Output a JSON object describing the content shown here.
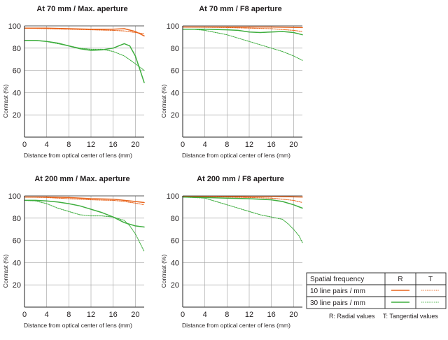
{
  "colors": {
    "orange": "#e8641c",
    "green": "#3fae3f",
    "grid": "#9e9e9e",
    "frame": "#222222"
  },
  "legend": {
    "header_label": "Spatial frequency",
    "col_r": "R",
    "col_t": "T",
    "row1_label": "10 line pairs / mm",
    "row2_label": "30 line pairs / mm",
    "note_r": "R: Radial values",
    "note_t": "T: Tangential values"
  },
  "chart_data": [
    {
      "type": "line",
      "title": "At 70 mm / Max. aperture",
      "xlabel": "Distance from optical center of lens (mm)",
      "ylabel": "Contrast (%)",
      "xlim": [
        0,
        21.6
      ],
      "ylim": [
        0,
        100
      ],
      "xticks": [
        0,
        4,
        8,
        12,
        16,
        20
      ],
      "yticks": [
        20,
        40,
        60,
        80,
        100
      ],
      "grid": true,
      "series": [
        {
          "name": "10 line pairs / mm R",
          "color": "orange",
          "style": "solid",
          "x": [
            0,
            4,
            8,
            12,
            16,
            18,
            20,
            21.6
          ],
          "y": [
            98,
            98,
            97.5,
            97,
            97,
            97.5,
            95,
            91
          ]
        },
        {
          "name": "10 line pairs / mm T",
          "color": "orange",
          "style": "dotted",
          "x": [
            0,
            4,
            8,
            12,
            16,
            18,
            20,
            21.6
          ],
          "y": [
            98,
            97.5,
            97,
            96.5,
            96,
            95.5,
            94,
            93
          ]
        },
        {
          "name": "30 line pairs / mm R",
          "color": "green",
          "style": "solid",
          "x": [
            0,
            2,
            4,
            6,
            8,
            10,
            12,
            14,
            16,
            17,
            18,
            19,
            20,
            21,
            21.6
          ],
          "y": [
            87,
            87,
            86,
            84.5,
            82,
            79.5,
            78,
            78.5,
            80,
            82,
            84,
            82,
            73,
            58,
            49
          ]
        },
        {
          "name": "30 line pairs / mm T",
          "color": "green",
          "style": "dotted",
          "x": [
            0,
            2,
            4,
            6,
            8,
            10,
            12,
            14,
            16,
            18,
            20,
            21.6
          ],
          "y": [
            87,
            87,
            86,
            84,
            82,
            80,
            79,
            79,
            77,
            73,
            66,
            60
          ]
        }
      ]
    },
    {
      "type": "line",
      "title": "At 70 mm / F8 aperture",
      "xlabel": "Distance from optical center of lens (mm)",
      "ylabel": "Contrast (%)",
      "xlim": [
        0,
        21.6
      ],
      "ylim": [
        0,
        100
      ],
      "xticks": [
        0,
        4,
        8,
        12,
        16,
        20
      ],
      "yticks": [
        20,
        40,
        60,
        80,
        100
      ],
      "grid": true,
      "series": [
        {
          "name": "10 line pairs / mm R",
          "color": "orange",
          "style": "solid",
          "x": [
            0,
            8,
            16,
            21.6
          ],
          "y": [
            99,
            99,
            99,
            98.5
          ]
        },
        {
          "name": "10 line pairs / mm T",
          "color": "orange",
          "style": "dotted",
          "x": [
            0,
            8,
            16,
            20,
            21.6
          ],
          "y": [
            99,
            98.5,
            97.5,
            96,
            95
          ]
        },
        {
          "name": "30 line pairs / mm R",
          "color": "green",
          "style": "solid",
          "x": [
            0,
            4,
            8,
            10,
            12,
            14,
            16,
            18,
            20,
            21.6
          ],
          "y": [
            97,
            97,
            96.5,
            96,
            94.5,
            94,
            94.5,
            95,
            94,
            92
          ]
        },
        {
          "name": "30 line pairs / mm T",
          "color": "green",
          "style": "dotted",
          "x": [
            0,
            2,
            4,
            6,
            8,
            10,
            12,
            14,
            16,
            18,
            20,
            21.6
          ],
          "y": [
            97,
            97,
            96,
            94,
            92,
            89,
            86,
            83,
            80,
            77,
            73,
            69
          ]
        }
      ]
    },
    {
      "type": "line",
      "title": "At 200 mm / Max. aperture",
      "xlabel": "Distance from optical center of lens (mm)",
      "ylabel": "Contrast (%)",
      "xlim": [
        0,
        21.6
      ],
      "ylim": [
        0,
        100
      ],
      "xticks": [
        0,
        4,
        8,
        12,
        16,
        20
      ],
      "yticks": [
        20,
        40,
        60,
        80,
        100
      ],
      "grid": true,
      "series": [
        {
          "name": "10 line pairs / mm R",
          "color": "orange",
          "style": "solid",
          "x": [
            0,
            4,
            8,
            12,
            16,
            18,
            20,
            21.6
          ],
          "y": [
            99,
            99,
            98.5,
            97.5,
            97,
            96,
            95,
            94
          ]
        },
        {
          "name": "10 line pairs / mm T",
          "color": "orange",
          "style": "dotted",
          "x": [
            0,
            4,
            8,
            12,
            16,
            18,
            20,
            21.6
          ],
          "y": [
            99,
            98.5,
            97.5,
            96.5,
            96,
            95,
            93.5,
            92
          ]
        },
        {
          "name": "30 line pairs / mm R",
          "color": "green",
          "style": "solid",
          "x": [
            0,
            2,
            4,
            6,
            8,
            10,
            12,
            14,
            16,
            18,
            20,
            21.6
          ],
          "y": [
            96,
            96,
            95.5,
            94.5,
            93,
            91,
            88,
            85,
            81,
            76,
            73,
            72
          ]
        },
        {
          "name": "30 line pairs / mm T",
          "color": "green",
          "style": "dotted",
          "x": [
            0,
            2,
            4,
            6,
            8,
            10,
            12,
            14,
            16,
            18,
            19,
            20,
            21,
            21.6
          ],
          "y": [
            96,
            95.5,
            93,
            89,
            86,
            83,
            82,
            82,
            81,
            78,
            73,
            66,
            56,
            50
          ]
        }
      ]
    },
    {
      "type": "line",
      "title": "At 200 mm / F8 aperture",
      "xlabel": "Distance from optical center of lens (mm)",
      "ylabel": "Contrast (%)",
      "xlim": [
        0,
        21.6
      ],
      "ylim": [
        0,
        100
      ],
      "xticks": [
        0,
        4,
        8,
        12,
        16,
        20
      ],
      "yticks": [
        20,
        40,
        60,
        80,
        100
      ],
      "grid": true,
      "series": [
        {
          "name": "10 line pairs / mm R",
          "color": "orange",
          "style": "solid",
          "x": [
            0,
            8,
            16,
            21.6
          ],
          "y": [
            99.5,
            99.5,
            99.5,
            99
          ]
        },
        {
          "name": "10 line pairs / mm T",
          "color": "orange",
          "style": "dotted",
          "x": [
            0,
            8,
            16,
            20,
            21.6
          ],
          "y": [
            99.5,
            99,
            98,
            96,
            94
          ]
        },
        {
          "name": "30 line pairs / mm R",
          "color": "green",
          "style": "solid",
          "x": [
            0,
            4,
            8,
            12,
            16,
            18,
            20,
            21.6
          ],
          "y": [
            99,
            98.5,
            98,
            97.5,
            96.5,
            95,
            92,
            89
          ]
        },
        {
          "name": "30 line pairs / mm T",
          "color": "green",
          "style": "dotted",
          "x": [
            0,
            2,
            4,
            6,
            8,
            10,
            12,
            14,
            16,
            18,
            19,
            20,
            21,
            21.6
          ],
          "y": [
            99,
            98.5,
            98,
            95,
            92,
            89,
            86,
            83,
            81,
            79,
            75,
            70,
            64,
            58
          ]
        }
      ]
    }
  ]
}
